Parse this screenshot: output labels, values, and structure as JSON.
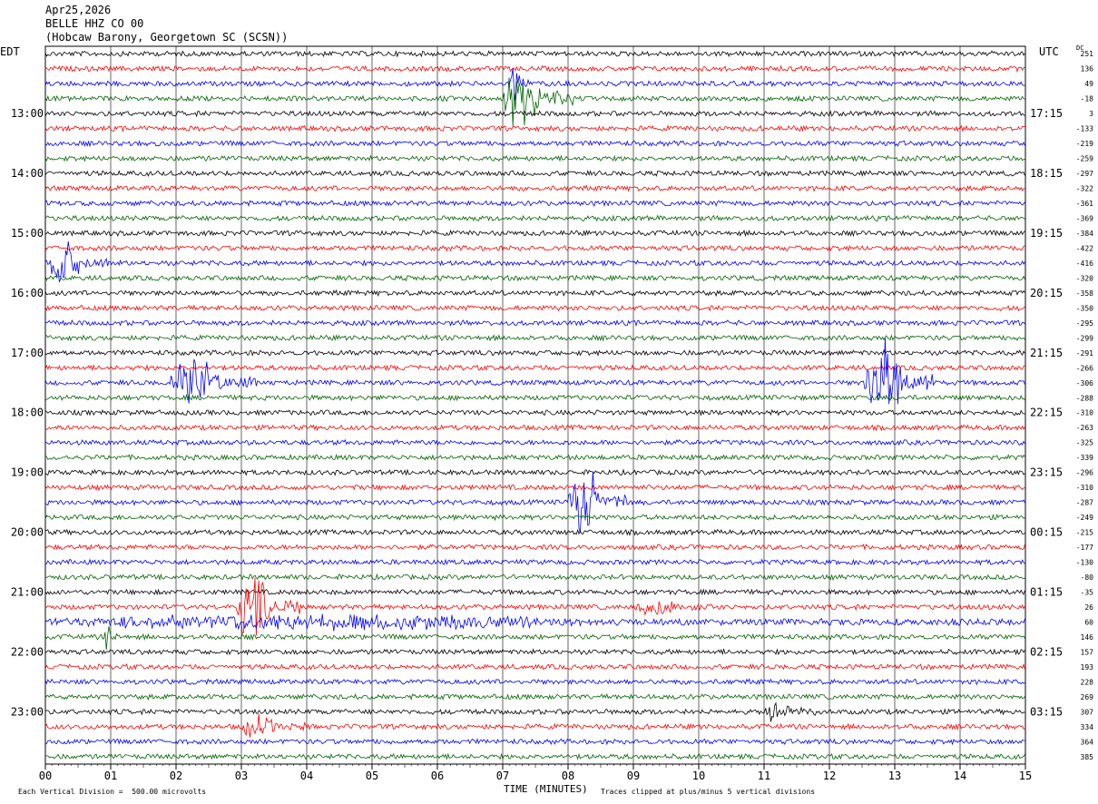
{
  "header": {
    "date": "Apr25,2026",
    "station": "BELLE HHZ CO 00",
    "location": "(Hobcaw Barony, Georgetown SC (SCSN))"
  },
  "left_timezone": "EDT",
  "right_timezone": "UTC",
  "dc_label": "DC",
  "footer": {
    "scale": "Each Vertical Division =  500.00 microvolts",
    "clip": "Traces clipped at plus/minus 5 vertical divisions",
    "xlabel": "TIME (MINUTES)"
  },
  "colors": {
    "trace_cycle": [
      "#000000",
      "#ff0000",
      "#0000ff",
      "#006400"
    ],
    "grid": "#000000"
  },
  "chart_data": {
    "type": "line",
    "x_range": [
      0,
      15
    ],
    "x_ticks": [
      "00",
      "01",
      "02",
      "03",
      "04",
      "05",
      "06",
      "07",
      "08",
      "09",
      "10",
      "11",
      "12",
      "13",
      "14",
      "15"
    ],
    "left_hour_labels": [
      "13:00",
      "14:00",
      "15:00",
      "16:00",
      "17:00",
      "18:00",
      "19:00",
      "20:00",
      "21:00",
      "22:00",
      "23:00"
    ],
    "right_hour_labels": [
      "17:15",
      "18:15",
      "19:15",
      "20:15",
      "21:15",
      "22:15",
      "23:15",
      "00:15",
      "01:15",
      "02:15",
      "03:15"
    ],
    "first_labeled_row": 4,
    "rows_per_hour": 4,
    "dc_offsets": [
      "251",
      "136",
      "49",
      "-18",
      "3",
      "-133",
      "-219",
      "-259",
      "-297",
      "-322",
      "-361",
      "-369",
      "-384",
      "-422",
      "-416",
      "-320",
      "-358",
      "-350",
      "-295",
      "-299",
      "-291",
      "-266",
      "-306",
      "-288",
      "-310",
      "-263",
      "-325",
      "-339",
      "-296",
      "-310",
      "-287",
      "-249",
      "-215",
      "-177",
      "-130",
      "-80",
      "-35",
      "26",
      "60",
      "146",
      "157",
      "193",
      "228",
      "269",
      "307",
      "334",
      "364",
      "385"
    ],
    "events": [
      {
        "row": 3,
        "start_min": 7.0,
        "end_min": 8.1,
        "amp": 3.2
      },
      {
        "row": 2,
        "start_min": 7.1,
        "end_min": 7.4,
        "amp": 2.5
      },
      {
        "row": 14,
        "start_min": 0.0,
        "end_min": 1.0,
        "amp": 2.2
      },
      {
        "row": 22,
        "start_min": 1.9,
        "end_min": 3.3,
        "amp": 2.4
      },
      {
        "row": 22,
        "start_min": 12.5,
        "end_min": 13.6,
        "amp": 5.0
      },
      {
        "row": 30,
        "start_min": 8.0,
        "end_min": 8.9,
        "amp": 3.3
      },
      {
        "row": 37,
        "start_min": 2.9,
        "end_min": 3.9,
        "amp": 3.2
      },
      {
        "row": 37,
        "start_min": 9.0,
        "end_min": 10.2,
        "amp": 0.7
      },
      {
        "row": 38,
        "start_min": 0.0,
        "end_min": 15.0,
        "amp": 0.6
      },
      {
        "row": 39,
        "start_min": 0.9,
        "end_min": 1.1,
        "amp": 1.8
      },
      {
        "row": 44,
        "start_min": 11.0,
        "end_min": 11.8,
        "amp": 1.0
      },
      {
        "row": 45,
        "start_min": 3.0,
        "end_min": 4.0,
        "amp": 1.0
      }
    ]
  }
}
